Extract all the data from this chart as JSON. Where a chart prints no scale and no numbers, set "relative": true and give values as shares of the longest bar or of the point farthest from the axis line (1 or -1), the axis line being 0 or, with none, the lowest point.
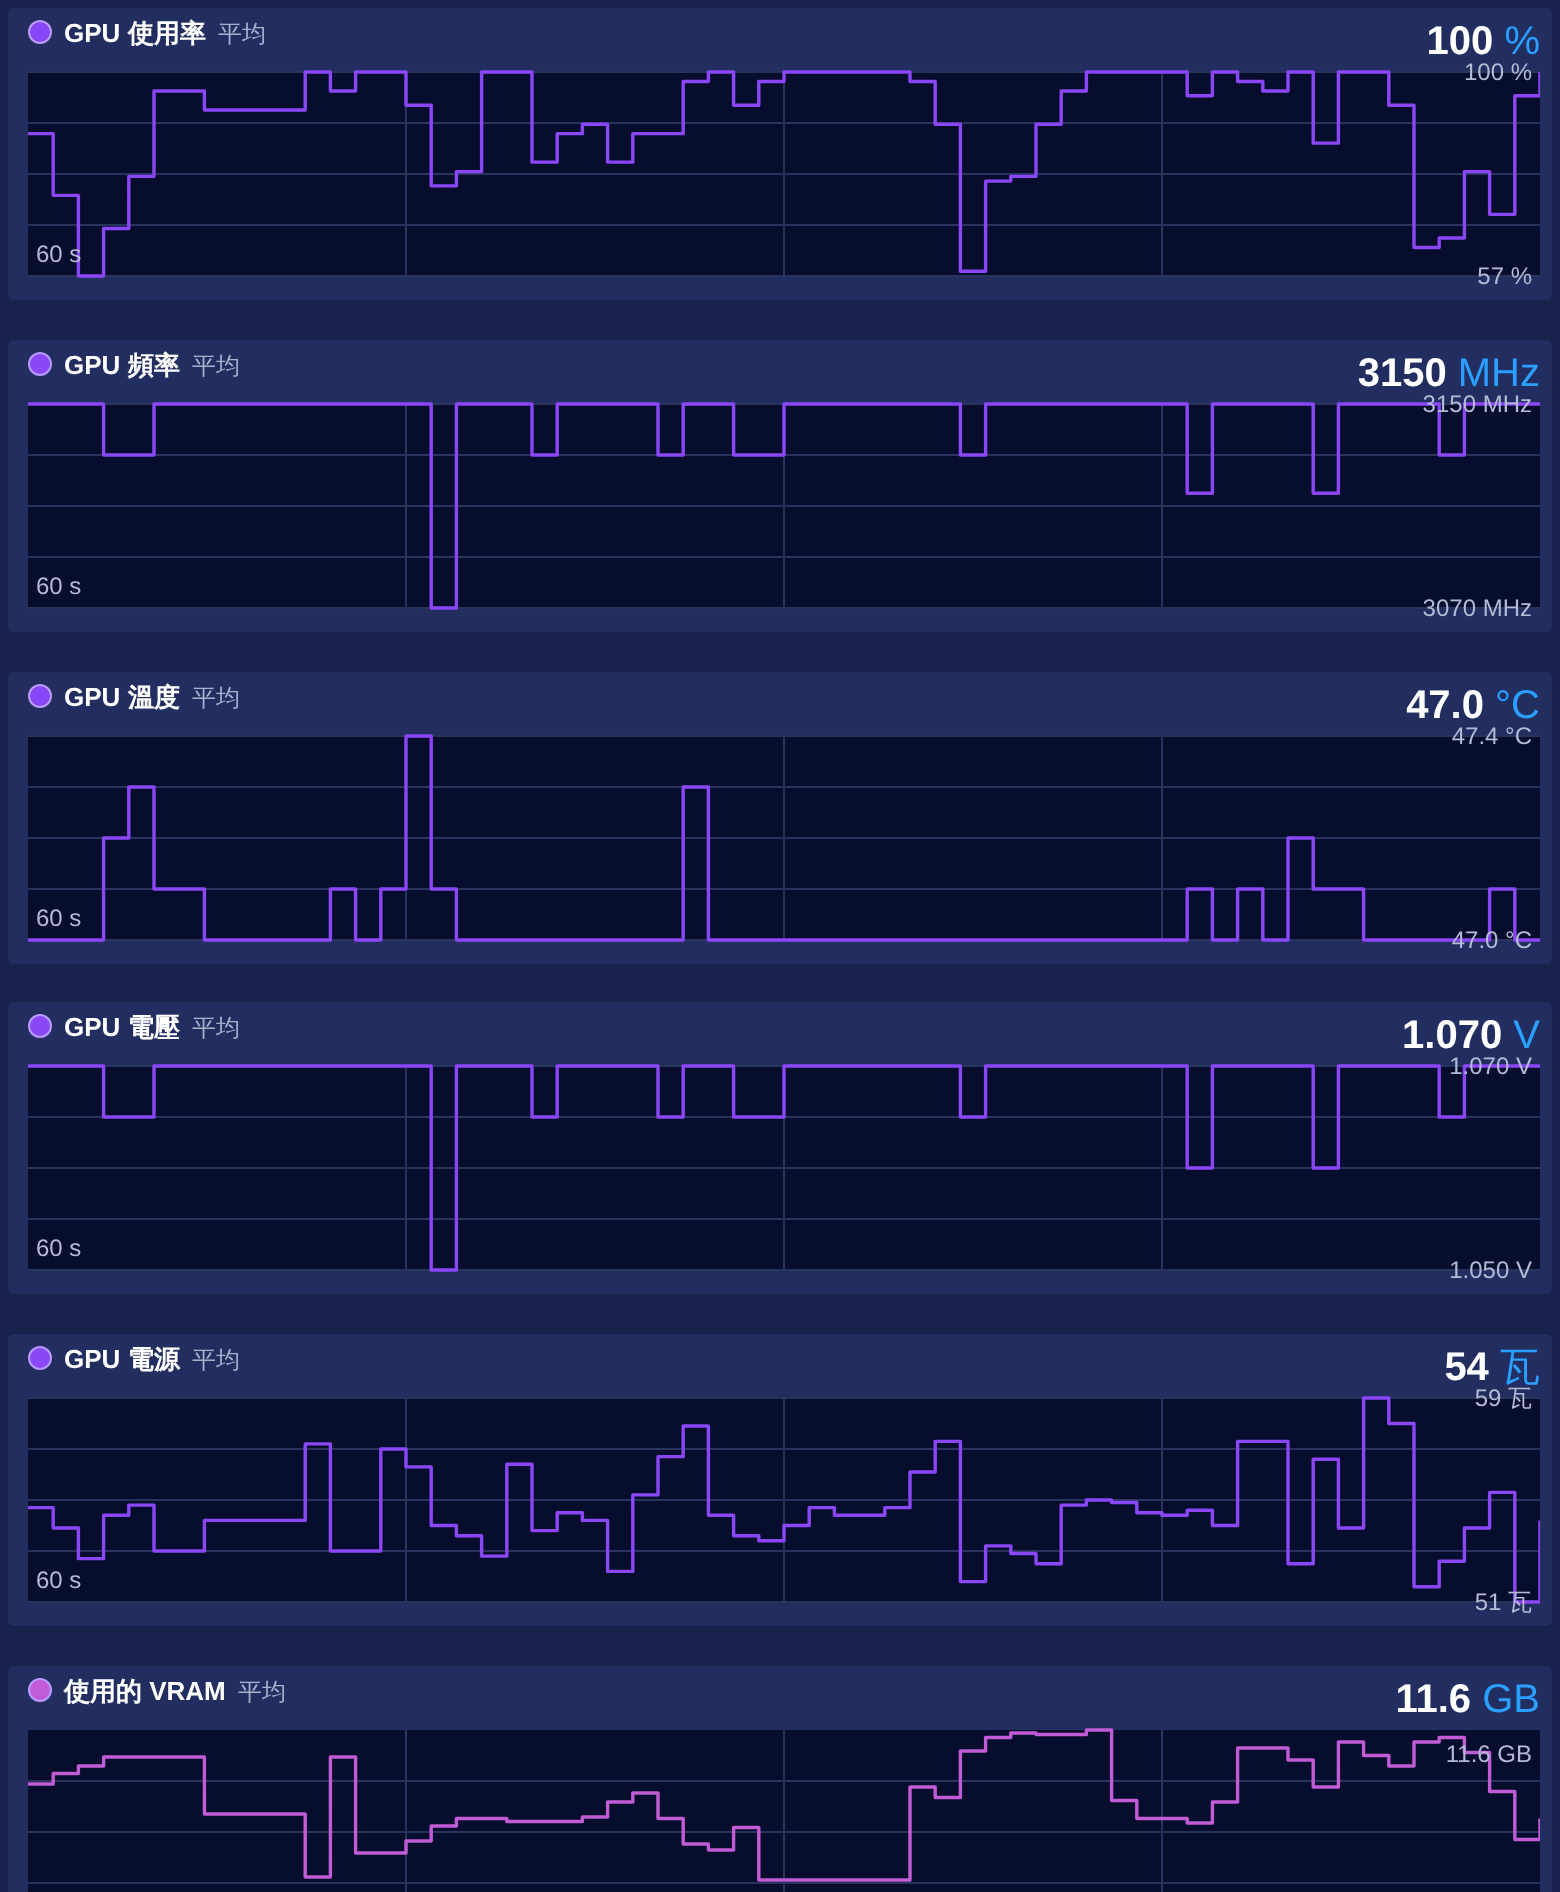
{
  "chart_data": [
    {
      "type": "step",
      "title": "GPU 使用率",
      "subtitle": "平均",
      "annotations": [
        "100 %",
        "60 s"
      ],
      "grid": true,
      "ylim": [
        57,
        100
      ],
      "yticks": [
        {
          "value": 57,
          "label": "57 %"
        },
        {
          "value": 67.75,
          "label": null
        },
        {
          "value": 78.5,
          "label": null
        },
        {
          "value": 89.25,
          "label": null
        },
        {
          "value": 100,
          "label": "100 %"
        }
      ],
      "categories": [
        null,
        null,
        null,
        null,
        null,
        null,
        null,
        null,
        null,
        null,
        null,
        null,
        null,
        null,
        null,
        null,
        null,
        null,
        null,
        null,
        null,
        null,
        null,
        null,
        null,
        null,
        null,
        null,
        null,
        null,
        null,
        null,
        null,
        null,
        null,
        null,
        null,
        null,
        null,
        null,
        null,
        null,
        null,
        null,
        null,
        null,
        null,
        null,
        null,
        null,
        null,
        null,
        null,
        null,
        null,
        null,
        null,
        null,
        null,
        null,
        null
      ],
      "series": [
        {
          "color": "#8b47f7",
          "values": [
            87,
            74,
            57,
            67,
            78,
            96,
            96,
            92,
            92,
            92,
            92,
            100,
            96,
            100,
            100,
            93,
            76,
            79,
            100,
            100,
            81,
            87,
            89,
            81,
            87,
            87,
            98,
            100,
            93,
            98,
            100,
            100,
            100,
            100,
            100,
            98,
            89,
            58,
            77,
            78,
            89,
            96,
            100,
            100,
            100,
            100,
            95,
            100,
            98,
            96,
            100,
            85,
            100,
            100,
            93,
            63,
            65,
            79,
            70,
            95,
            100
          ]
        }
      ]
    },
    {
      "type": "step",
      "title": "GPU 頻率",
      "subtitle": "平均",
      "annotations": [
        "3150 MHz",
        "60 s"
      ],
      "grid": true,
      "ylim": [
        3070,
        3150
      ],
      "yticks": [
        {
          "value": 3070,
          "label": "3070 MHz"
        },
        {
          "value": 3090,
          "label": null
        },
        {
          "value": 3110,
          "label": null
        },
        {
          "value": 3130,
          "label": null
        },
        {
          "value": 3150,
          "label": "3150 MHz"
        }
      ],
      "categories": [
        null,
        null,
        null,
        null,
        null,
        null,
        null,
        null,
        null,
        null,
        null,
        null,
        null,
        null,
        null,
        null,
        null,
        null,
        null,
        null,
        null,
        null,
        null,
        null,
        null,
        null,
        null,
        null,
        null,
        null,
        null,
        null,
        null,
        null,
        null,
        null,
        null,
        null,
        null,
        null,
        null,
        null,
        null,
        null,
        null,
        null,
        null,
        null,
        null,
        null,
        null,
        null,
        null,
        null,
        null,
        null,
        null,
        null,
        null,
        null,
        null
      ],
      "series": [
        {
          "color": "#8b47f7",
          "values": [
            3150,
            3150,
            3150,
            3130,
            3130,
            3150,
            3150,
            3150,
            3150,
            3150,
            3150,
            3150,
            3150,
            3150,
            3150,
            3150,
            3070,
            3150,
            3150,
            3150,
            3130,
            3150,
            3150,
            3150,
            3150,
            3130,
            3150,
            3150,
            3130,
            3130,
            3150,
            3150,
            3150,
            3150,
            3150,
            3150,
            3150,
            3130,
            3150,
            3150,
            3150,
            3150,
            3150,
            3150,
            3150,
            3150,
            3115,
            3150,
            3150,
            3150,
            3150,
            3115,
            3150,
            3150,
            3150,
            3150,
            3130,
            3150,
            3150,
            3150,
            3150
          ]
        }
      ]
    },
    {
      "type": "step",
      "title": "GPU 溫度",
      "subtitle": "平均",
      "annotations": [
        "47.0 °C",
        "60 s"
      ],
      "grid": true,
      "ylim": [
        47.0,
        47.4
      ],
      "yticks": [
        {
          "value": 47.0,
          "label": "47.0 °C"
        },
        {
          "value": 47.1,
          "label": null
        },
        {
          "value": 47.2,
          "label": null
        },
        {
          "value": 47.3,
          "label": null
        },
        {
          "value": 47.4,
          "label": "47.4 °C"
        }
      ],
      "categories": [
        null,
        null,
        null,
        null,
        null,
        null,
        null,
        null,
        null,
        null,
        null,
        null,
        null,
        null,
        null,
        null,
        null,
        null,
        null,
        null,
        null,
        null,
        null,
        null,
        null,
        null,
        null,
        null,
        null,
        null,
        null,
        null,
        null,
        null,
        null,
        null,
        null,
        null,
        null,
        null,
        null,
        null,
        null,
        null,
        null,
        null,
        null,
        null,
        null,
        null,
        null,
        null,
        null,
        null,
        null,
        null,
        null,
        null,
        null,
        null,
        null
      ],
      "series": [
        {
          "color": "#8b47f7",
          "values": [
            47.0,
            47.0,
            47.0,
            47.2,
            47.3,
            47.1,
            47.1,
            47.0,
            47.0,
            47.0,
            47.0,
            47.0,
            47.1,
            47.0,
            47.1,
            47.4,
            47.1,
            47.0,
            47.0,
            47.0,
            47.0,
            47.0,
            47.0,
            47.0,
            47.0,
            47.0,
            47.3,
            47.0,
            47.0,
            47.0,
            47.0,
            47.0,
            47.0,
            47.0,
            47.0,
            47.0,
            47.0,
            47.0,
            47.0,
            47.0,
            47.0,
            47.0,
            47.0,
            47.0,
            47.0,
            47.0,
            47.1,
            47.0,
            47.1,
            47.0,
            47.2,
            47.1,
            47.1,
            47.0,
            47.0,
            47.0,
            47.0,
            47.0,
            47.1,
            47.0,
            47.0
          ]
        }
      ]
    },
    {
      "type": "step",
      "title": "GPU 電壓",
      "subtitle": "平均",
      "annotations": [
        "1.070 V",
        "60 s"
      ],
      "grid": true,
      "ylim": [
        1.05,
        1.07
      ],
      "yticks": [
        {
          "value": 1.05,
          "label": "1.050 V"
        },
        {
          "value": 1.055,
          "label": null
        },
        {
          "value": 1.06,
          "label": null
        },
        {
          "value": 1.065,
          "label": null
        },
        {
          "value": 1.07,
          "label": "1.070 V"
        }
      ],
      "categories": [
        null,
        null,
        null,
        null,
        null,
        null,
        null,
        null,
        null,
        null,
        null,
        null,
        null,
        null,
        null,
        null,
        null,
        null,
        null,
        null,
        null,
        null,
        null,
        null,
        null,
        null,
        null,
        null,
        null,
        null,
        null,
        null,
        null,
        null,
        null,
        null,
        null,
        null,
        null,
        null,
        null,
        null,
        null,
        null,
        null,
        null,
        null,
        null,
        null,
        null,
        null,
        null,
        null,
        null,
        null,
        null,
        null,
        null,
        null,
        null,
        null
      ],
      "series": [
        {
          "color": "#8b47f7",
          "values": [
            1.07,
            1.07,
            1.07,
            1.065,
            1.065,
            1.07,
            1.07,
            1.07,
            1.07,
            1.07,
            1.07,
            1.07,
            1.07,
            1.07,
            1.07,
            1.07,
            1.05,
            1.07,
            1.07,
            1.07,
            1.065,
            1.07,
            1.07,
            1.07,
            1.07,
            1.065,
            1.07,
            1.07,
            1.065,
            1.065,
            1.07,
            1.07,
            1.07,
            1.07,
            1.07,
            1.07,
            1.07,
            1.065,
            1.07,
            1.07,
            1.07,
            1.07,
            1.07,
            1.07,
            1.07,
            1.07,
            1.06,
            1.07,
            1.07,
            1.07,
            1.07,
            1.06,
            1.07,
            1.07,
            1.07,
            1.07,
            1.065,
            1.07,
            1.07,
            1.07,
            1.07
          ]
        }
      ]
    },
    {
      "type": "step",
      "title": "GPU 電源",
      "subtitle": "平均",
      "annotations": [
        "54 瓦",
        "60 s"
      ],
      "grid": true,
      "ylim": [
        51,
        59
      ],
      "yticks": [
        {
          "value": 51,
          "label": "51 瓦"
        },
        {
          "value": 53,
          "label": null
        },
        {
          "value": 55,
          "label": null
        },
        {
          "value": 57,
          "label": null
        },
        {
          "value": 59,
          "label": "59 瓦"
        }
      ],
      "categories": [
        null,
        null,
        null,
        null,
        null,
        null,
        null,
        null,
        null,
        null,
        null,
        null,
        null,
        null,
        null,
        null,
        null,
        null,
        null,
        null,
        null,
        null,
        null,
        null,
        null,
        null,
        null,
        null,
        null,
        null,
        null,
        null,
        null,
        null,
        null,
        null,
        null,
        null,
        null,
        null,
        null,
        null,
        null,
        null,
        null,
        null,
        null,
        null,
        null,
        null,
        null,
        null,
        null,
        null,
        null,
        null,
        null,
        null,
        null,
        null,
        null
      ],
      "series": [
        {
          "color": "#8b47f7",
          "values": [
            54.7,
            53.9,
            52.7,
            54.4,
            54.8,
            53.0,
            53.0,
            54.2,
            54.2,
            54.2,
            54.2,
            57.2,
            53.0,
            53.0,
            57.0,
            56.3,
            54.0,
            53.6,
            52.8,
            56.4,
            53.8,
            54.5,
            54.2,
            52.2,
            55.2,
            56.7,
            57.9,
            54.4,
            53.6,
            53.4,
            54.0,
            54.7,
            54.4,
            54.4,
            54.7,
            56.1,
            57.3,
            51.8,
            53.2,
            52.9,
            52.5,
            54.8,
            55.0,
            54.9,
            54.5,
            54.4,
            54.6,
            54.0,
            57.3,
            57.3,
            52.5,
            56.6,
            53.9,
            59.0,
            58.0,
            51.6,
            52.6,
            53.9,
            55.3,
            51.0,
            54.2
          ]
        }
      ]
    },
    {
      "type": "step",
      "title": "使用的 VRAM",
      "subtitle": "平均",
      "annotations": [
        "11.6 GB",
        "11.6 GB"
      ],
      "grid": true,
      "relative": true,
      "categories": [
        null,
        null,
        null,
        null,
        null,
        null,
        null,
        null,
        null,
        null,
        null,
        null,
        null,
        null,
        null,
        null,
        null,
        null,
        null,
        null,
        null,
        null,
        null,
        null,
        null,
        null,
        null,
        null,
        null,
        null,
        null,
        null,
        null,
        null,
        null,
        null,
        null,
        null,
        null,
        null,
        null,
        null,
        null,
        null,
        null,
        null,
        null,
        null,
        null,
        null,
        null,
        null,
        null,
        null,
        null,
        null,
        null,
        null,
        null,
        null,
        null
      ],
      "series": [
        {
          "color": "#c25bd6",
          "values": [
            0.64,
            0.71,
            0.76,
            0.82,
            0.82,
            0.82,
            0.82,
            0.44,
            0.44,
            0.44,
            0.44,
            0.02,
            0.82,
            0.18,
            0.18,
            0.26,
            0.36,
            0.41,
            0.41,
            0.39,
            0.39,
            0.39,
            0.42,
            0.52,
            0.58,
            0.41,
            0.24,
            0.2,
            0.35,
            0,
            0,
            0,
            0,
            0,
            0,
            0.62,
            0.55,
            0.86,
            0.95,
            0.98,
            0.97,
            0.97,
            1,
            0.53,
            0.41,
            0.41,
            0.38,
            0.52,
            0.88,
            0.88,
            0.8,
            0.62,
            0.92,
            0.83,
            0.76,
            0.92,
            0.95,
            0.85,
            0.59,
            0.27,
            0.41
          ]
        }
      ]
    }
  ]
}
